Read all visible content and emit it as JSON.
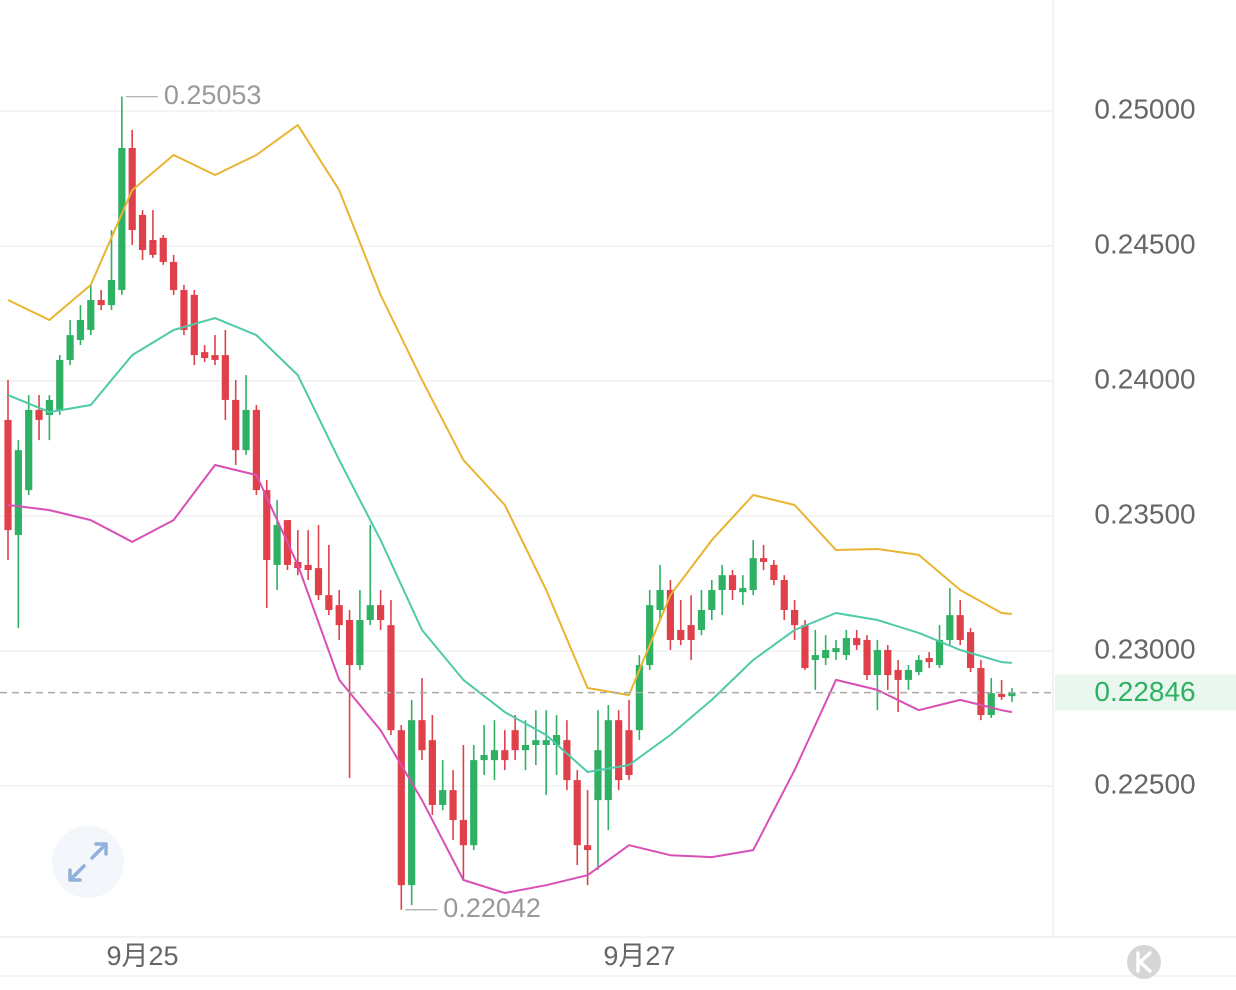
{
  "chart_data": {
    "type": "candlestick",
    "categories": [
      null,
      null,
      null,
      null,
      null,
      null,
      null,
      null,
      null,
      null,
      null,
      null,
      null,
      "9月25",
      null,
      null,
      null,
      null,
      null,
      null,
      null,
      null,
      null,
      null,
      null,
      null,
      null,
      null,
      null,
      null,
      null,
      null,
      null,
      null,
      null,
      null,
      null,
      null,
      null,
      null,
      null,
      null,
      null,
      null,
      null,
      null,
      null,
      null,
      null,
      null,
      null,
      null,
      null,
      null,
      null,
      null,
      null,
      null,
      null,
      null,
      null,
      "9月27",
      null,
      null,
      null,
      null,
      null,
      null,
      null,
      null,
      null,
      null,
      null,
      null,
      null,
      null,
      null,
      null,
      null,
      null,
      null,
      null,
      null,
      null,
      null,
      null,
      null,
      null,
      null,
      null,
      null,
      null,
      null,
      null,
      null,
      null,
      null,
      null
    ],
    "open": [
      0.23856,
      0.2343,
      0.23596,
      0.23893,
      0.23874,
      0.23893,
      0.24078,
      0.24152,
      0.24189,
      0.243,
      0.24281,
      0.24337,
      0.24863,
      0.24615,
      0.24522,
      0.2453,
      0.24441,
      0.24337,
      0.24319,
      0.24107,
      0.24096,
      0.24096,
      0.2393,
      0.23744,
      0.23893,
      0.23596,
      0.23319,
      0.23485,
      0.2333,
      0.23319,
      0.23307,
      0.23207,
      0.2317,
      0.23115,
      0.22948,
      0.23115,
      0.2317,
      0.23096,
      0.22707,
      0.22133,
      0.22744,
      0.2267,
      0.2243,
      0.22485,
      0.22374,
      0.22281,
      0.22596,
      0.22596,
      0.22633,
      0.22707,
      0.22633,
      0.22652,
      0.22652,
      0.22652,
      0.2267,
      0.22522,
      0.22281,
      0.22448,
      0.22448,
      0.22744,
      0.22707,
      0.22707,
      0.22948,
      0.23152,
      0.23226,
      0.23078,
      0.23096,
      0.23078,
      0.23152,
      0.23226,
      0.23281,
      0.23218,
      0.23226,
      0.23344,
      0.23319,
      0.23263,
      0.23152,
      0.23096,
      0.22967,
      0.22974,
      0.22996,
      0.22985,
      0.23048,
      0.23041,
      0.22911,
      0.23004,
      0.2293,
      0.22893,
      0.22922,
      0.22974,
      0.22948,
      0.23041,
      0.23133,
      0.2307,
      0.22937,
      0.22763,
      0.22841,
      0.22833
    ],
    "high": [
      0.24004,
      0.23781,
      0.23948,
      0.23948,
      0.23948,
      0.24096,
      0.24226,
      0.24281,
      0.24356,
      0.24337,
      0.24559,
      0.25053,
      0.2493,
      0.24633,
      0.24633,
      0.24541,
      0.24467,
      0.24356,
      0.24337,
      0.24133,
      0.2417,
      0.24189,
      0.24004,
      0.24022,
      0.23911,
      0.23633,
      0.23559,
      0.23485,
      0.23448,
      0.23448,
      0.23467,
      0.23393,
      0.23226,
      0.23152,
      0.23226,
      0.23467,
      0.23226,
      0.23189,
      0.22726,
      0.22819,
      0.229,
      0.22763,
      0.22596,
      0.22559,
      0.22652,
      0.22652,
      0.22726,
      0.22744,
      0.22707,
      0.22763,
      0.22744,
      0.22781,
      0.22781,
      0.22763,
      0.22744,
      0.22559,
      0.22485,
      0.22781,
      0.228,
      0.22781,
      0.22819,
      0.22985,
      0.23226,
      0.23319,
      0.23263,
      0.23189,
      0.23207,
      0.23226,
      0.23263,
      0.23319,
      0.233,
      0.23281,
      0.23411,
      0.23393,
      0.23337,
      0.23281,
      0.23189,
      0.23115,
      0.23078,
      0.23059,
      0.23041,
      0.23078,
      0.23078,
      0.23059,
      0.23041,
      0.23022,
      0.22967,
      0.22948,
      0.22985,
      0.22996,
      0.23096,
      0.23233,
      0.23189,
      0.23085,
      0.22967,
      0.229,
      0.22893,
      0.22863
    ],
    "low": [
      0.23337,
      0.23085,
      0.23578,
      0.23781,
      0.23781,
      0.23874,
      0.24059,
      0.24133,
      0.2417,
      0.24263,
      0.24263,
      0.24319,
      0.24504,
      0.24448,
      0.24456,
      0.2443,
      0.24319,
      0.2417,
      0.24059,
      0.2407,
      0.24059,
      0.23856,
      0.23689,
      0.23726,
      0.23578,
      0.23159,
      0.23226,
      0.233,
      0.23281,
      0.23263,
      0.23189,
      0.23133,
      0.23041,
      0.2253,
      0.2293,
      0.23096,
      0.23078,
      0.22689,
      0.22042,
      0.22059,
      0.22596,
      0.22393,
      0.22411,
      0.223,
      0.22152,
      0.22263,
      0.22541,
      0.22522,
      0.22559,
      0.22596,
      0.22559,
      0.22578,
      0.22467,
      0.22541,
      0.22485,
      0.22207,
      0.22133,
      0.22189,
      0.22337,
      0.22485,
      0.22522,
      0.2267,
      0.2293,
      0.23115,
      0.23004,
      0.23022,
      0.22967,
      0.23059,
      0.23115,
      0.23133,
      0.23189,
      0.2317,
      0.23207,
      0.233,
      0.23244,
      0.23115,
      0.23041,
      0.2293,
      0.22856,
      0.22948,
      0.22967,
      0.22967,
      0.23004,
      0.22893,
      0.22781,
      0.22856,
      0.22774,
      0.22856,
      0.22911,
      0.22937,
      0.22937,
      0.23022,
      0.23022,
      0.22922,
      0.22744,
      0.22752,
      0.22819,
      0.22811
    ],
    "close": [
      0.23448,
      0.23744,
      0.23893,
      0.23856,
      0.2393,
      0.24078,
      0.2417,
      0.24226,
      0.243,
      0.24281,
      0.24374,
      0.24863,
      0.24559,
      0.24485,
      0.24467,
      0.24441,
      0.24337,
      0.24189,
      0.24096,
      0.24085,
      0.24078,
      0.2393,
      0.23744,
      0.23893,
      0.23596,
      0.23337,
      0.23467,
      0.23319,
      0.23307,
      0.233,
      0.23207,
      0.23152,
      0.23096,
      0.22948,
      0.23115,
      0.2317,
      0.23115,
      0.22707,
      0.22133,
      0.22744,
      0.22633,
      0.2243,
      0.22485,
      0.22374,
      0.22281,
      0.22596,
      0.22615,
      0.22633,
      0.22596,
      0.22633,
      0.22652,
      0.2267,
      0.2267,
      0.22689,
      0.22522,
      0.22281,
      0.22263,
      0.22633,
      0.22744,
      0.22522,
      0.22541,
      0.22948,
      0.2317,
      0.23226,
      0.23041,
      0.23041,
      0.23041,
      0.23152,
      0.23226,
      0.23281,
      0.23226,
      0.23233,
      0.23344,
      0.2333,
      0.23263,
      0.23152,
      0.23096,
      0.22937,
      0.22985,
      0.23004,
      0.23011,
      0.23048,
      0.23022,
      0.22911,
      0.23004,
      0.22911,
      0.22893,
      0.2293,
      0.22967,
      0.22959,
      0.23041,
      0.23133,
      0.23041,
      0.22937,
      0.22763,
      0.22844,
      0.2283,
      0.22846
    ],
    "up_color": "#2fb164",
    "down_color": "#e0404a",
    "bands": {
      "x": [
        0,
        4,
        8,
        12,
        16,
        20,
        24,
        28,
        32,
        36,
        40,
        44,
        48,
        52,
        56,
        60,
        64,
        68,
        72,
        76,
        80,
        84,
        88,
        92,
        96,
        97
      ],
      "series": [
        {
          "color": "#e9b430",
          "values": [
            0.243,
            0.24226,
            0.24356,
            0.24707,
            0.24837,
            0.24763,
            0.24837,
            0.24948,
            0.24707,
            0.24319,
            0.24004,
            0.23707,
            0.23541,
            0.23226,
            0.22863,
            0.22837,
            0.23207,
            0.23411,
            0.23578,
            0.23541,
            0.23374,
            0.23378,
            0.23356,
            0.23226,
            0.23141,
            0.23137
          ]
        },
        {
          "color": "#4fcaa8",
          "values": [
            0.23948,
            0.23885,
            0.23911,
            0.24096,
            0.24189,
            0.24233,
            0.2417,
            0.24022,
            0.23707,
            0.23411,
            0.23078,
            0.22893,
            0.22774,
            0.22689,
            0.22552,
            0.22578,
            0.22689,
            0.22819,
            0.22967,
            0.23078,
            0.23141,
            0.23115,
            0.23067,
            0.23004,
            0.22959,
            0.22956
          ]
        },
        {
          "color": "#d94fb6",
          "values": [
            0.23541,
            0.23522,
            0.23485,
            0.23404,
            0.23485,
            0.23689,
            0.23652,
            0.23319,
            0.22893,
            0.22707,
            0.22448,
            0.22152,
            0.22104,
            0.22133,
            0.2217,
            0.22281,
            0.22244,
            0.22237,
            0.22263,
            0.22559,
            0.22893,
            0.22856,
            0.22781,
            0.22819,
            0.22781,
            0.22774
          ]
        }
      ]
    },
    "ylim": [
      0.21941,
      0.25411
    ],
    "yticks": [
      {
        "value": 0.25,
        "label": "0.25000"
      },
      {
        "value": 0.245,
        "label": "0.24500"
      },
      {
        "value": 0.24,
        "label": "0.24000"
      },
      {
        "value": 0.235,
        "label": "0.23500"
      },
      {
        "value": 0.23,
        "label": "0.23000"
      },
      {
        "value": 0.225,
        "label": "0.22500"
      }
    ],
    "grid": true
  }
}
